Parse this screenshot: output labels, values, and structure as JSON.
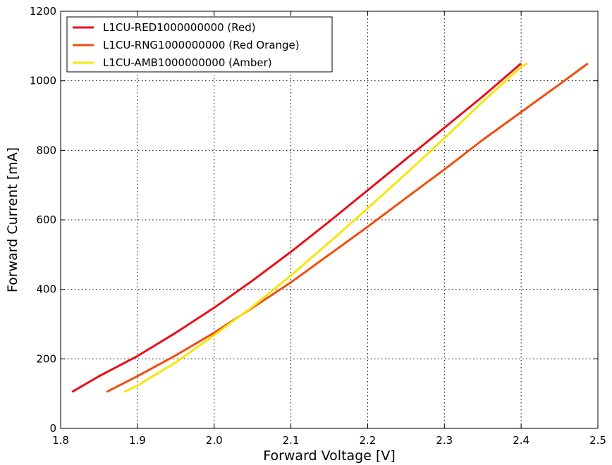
{
  "chart_data": {
    "type": "line",
    "xlabel": "Forward Voltage [V]",
    "ylabel": "Forward Current [mA]",
    "xlim": [
      1.8,
      2.5
    ],
    "ylim": [
      0,
      1200
    ],
    "xticks": [
      "1.8",
      "1.9",
      "2.0",
      "2.1",
      "2.2",
      "2.3",
      "2.4",
      "2.5"
    ],
    "yticks": [
      "0",
      "200",
      "400",
      "600",
      "800",
      "1000",
      "1200"
    ],
    "grid": true,
    "legend_position": "top-left",
    "series": [
      {
        "name": "L1CU-RED1000000000 (Red)",
        "color": "#e8101a",
        "x": [
          1.815,
          1.85,
          1.9,
          1.95,
          2.0,
          2.05,
          2.1,
          2.15,
          2.2,
          2.25,
          2.3,
          2.35,
          2.4
        ],
        "y": [
          105,
          150,
          208,
          275,
          347,
          425,
          508,
          595,
          685,
          775,
          865,
          955,
          1050
        ]
      },
      {
        "name": "L1CU-RNG1000000000 (Red Orange)",
        "color": "#f04e12",
        "x": [
          1.86,
          1.9,
          1.95,
          2.0,
          2.05,
          2.1,
          2.15,
          2.2,
          2.25,
          2.3,
          2.35,
          2.4,
          2.45,
          2.487
        ],
        "y": [
          105,
          150,
          210,
          275,
          347,
          420,
          500,
          580,
          663,
          745,
          830,
          910,
          990,
          1050
        ]
      },
      {
        "name": "L1CU-AMB1000000000 (Amber)",
        "color": "#f5e60c",
        "x": [
          1.883,
          1.9,
          1.95,
          2.0,
          2.05,
          2.1,
          2.15,
          2.2,
          2.25,
          2.3,
          2.35,
          2.4,
          2.408
        ],
        "y": [
          105,
          123,
          190,
          268,
          350,
          440,
          535,
          633,
          733,
          835,
          940,
          1040,
          1050
        ]
      }
    ]
  }
}
